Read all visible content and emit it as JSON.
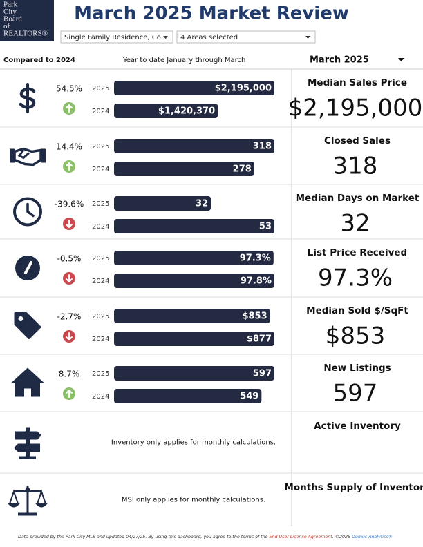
{
  "header": {
    "logo": [
      "Park",
      "City",
      "Board",
      "of",
      "REALTORS®"
    ],
    "title": "March 2025 Market Review",
    "filters": [
      "Single Family Residence, Co...",
      "4 Areas selected"
    ]
  },
  "columns": {
    "comparison": "Compared to 2024",
    "period": "Year to date January through March",
    "month": "March 2025"
  },
  "metrics": [
    {
      "name": "Median Sales Price",
      "value": "$2,195,000",
      "change": "54.5%",
      "direction": "up",
      "bars": [
        {
          "year": "2025",
          "value": 2195000,
          "label": "$2,195,000"
        },
        {
          "year": "2024",
          "value": 1420370,
          "label": "$1,420,370"
        }
      ]
    },
    {
      "name": "Closed Sales",
      "value": "318",
      "change": "14.4%",
      "direction": "up",
      "bars": [
        {
          "year": "2025",
          "value": 318,
          "label": "318"
        },
        {
          "year": "2024",
          "value": 278,
          "label": "278"
        }
      ]
    },
    {
      "name": "Median Days on Market",
      "value": "32",
      "change": "-39.6%",
      "direction": "down",
      "bars": [
        {
          "year": "2025",
          "value": 32,
          "label": "32"
        },
        {
          "year": "2024",
          "value": 53,
          "label": "53"
        }
      ]
    },
    {
      "name": "List Price Received",
      "value": "97.3%",
      "change": "-0.5%",
      "direction": "down",
      "bars": [
        {
          "year": "2025",
          "value": 97.3,
          "label": "97.3%"
        },
        {
          "year": "2024",
          "value": 97.8,
          "label": "97.8%"
        }
      ]
    },
    {
      "name": "Median Sold $/SqFt",
      "value": "$853",
      "change": "-2.7%",
      "direction": "down",
      "bars": [
        {
          "year": "2025",
          "value": 853,
          "label": "$853"
        },
        {
          "year": "2024",
          "value": 877,
          "label": "$877"
        }
      ]
    },
    {
      "name": "New Listings",
      "value": "597",
      "change": "8.7%",
      "direction": "up",
      "bars": [
        {
          "year": "2025",
          "value": 597,
          "label": "597"
        },
        {
          "year": "2024",
          "value": 549,
          "label": "549"
        }
      ]
    }
  ],
  "notes": [
    {
      "name": "Active Inventory",
      "message": "Inventory only applies for monthly calculations."
    },
    {
      "name": "Months Supply of Inventory",
      "message": "MSI only applies for monthly calculations."
    }
  ],
  "footer": [
    "Data provided by the Park City MLS and updated 04/27/25.  By using this dashboard, you agree to the terms of the ",
    "End User License Agreement",
    ".  ©2025 ",
    "Domus Analytics®"
  ]
}
